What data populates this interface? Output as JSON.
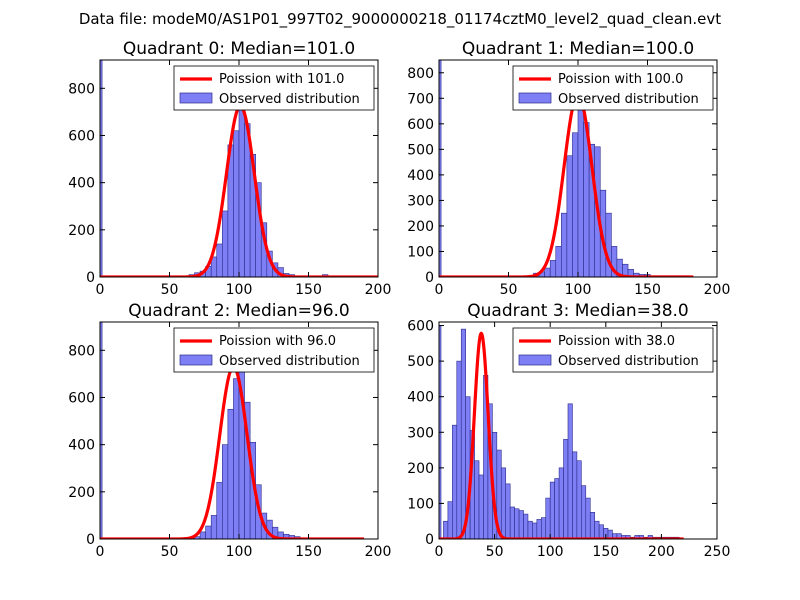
{
  "figure_title": "Data file: modeM0/AS1P01_997T02_9000000218_01174cztM0_level2_quad_clean.evt",
  "colors": {
    "hist_fill": "#7f7ff5",
    "hist_edge": "#2a2a8a",
    "poisson": "#ff0000"
  },
  "chart_data": [
    {
      "type": "bar",
      "title": "Quadrant 0: Median=101.0",
      "xlim": [
        0,
        200
      ],
      "ylim": [
        0,
        920
      ],
      "xticks": [
        0,
        50,
        100,
        150,
        200
      ],
      "yticks": [
        0,
        200,
        400,
        600,
        800
      ],
      "legend": {
        "position": "top-right",
        "entries": [
          "Poission with 101.0",
          "Observed distribution"
        ]
      },
      "spike_at_zero": 920,
      "hist": {
        "bin_width": 4,
        "start": 60,
        "values": [
          5,
          10,
          18,
          25,
          45,
          85,
          140,
          280,
          560,
          620,
          760,
          650,
          520,
          400,
          230,
          110,
          60,
          40,
          15,
          10,
          5,
          5,
          5,
          5,
          5,
          10,
          5,
          5,
          5,
          5,
          5
        ]
      },
      "poisson": {
        "mean": 101.0,
        "peak": 725,
        "sigma": 10.0,
        "x_range": [
          0,
          200
        ]
      }
    },
    {
      "type": "bar",
      "title": "Quadrant 1: Median=100.0",
      "xlim": [
        0,
        200
      ],
      "ylim": [
        0,
        850
      ],
      "xticks": [
        0,
        50,
        100,
        150,
        200
      ],
      "yticks": [
        0,
        100,
        200,
        300,
        400,
        500,
        600,
        700,
        800
      ],
      "legend": {
        "position": "top-right",
        "entries": [
          "Poission with 100.0",
          "Observed distribution"
        ]
      },
      "spike_at_zero": 850,
      "hist": {
        "bin_width": 4,
        "start": 64,
        "values": [
          5,
          15,
          20,
          35,
          65,
          120,
          250,
          475,
          565,
          700,
          605,
          520,
          510,
          340,
          250,
          120,
          70,
          50,
          30,
          15,
          10,
          10,
          5,
          5,
          5,
          5,
          5,
          5,
          5
        ]
      },
      "poisson": {
        "mean": 100.0,
        "peak": 715,
        "sigma": 10.0,
        "x_range": [
          0,
          183
        ]
      }
    },
    {
      "type": "bar",
      "title": "Quadrant 2: Median=96.0",
      "xlim": [
        0,
        200
      ],
      "ylim": [
        0,
        920
      ],
      "xticks": [
        0,
        50,
        100,
        150,
        200
      ],
      "yticks": [
        0,
        200,
        400,
        600,
        800
      ],
      "legend": {
        "position": "top-right",
        "entries": [
          "Poission with 96.0",
          "Observed distribution"
        ]
      },
      "spike_at_zero": 920,
      "hist": {
        "bin_width": 4,
        "start": 64,
        "values": [
          5,
          10,
          30,
          55,
          100,
          240,
          400,
          550,
          680,
          770,
          580,
          410,
          230,
          110,
          80,
          50,
          30,
          20,
          15,
          10,
          5,
          5,
          5,
          5,
          5,
          5,
          5,
          5,
          5,
          5,
          5
        ]
      },
      "poisson": {
        "mean": 96.0,
        "peak": 730,
        "sigma": 9.8,
        "x_range": [
          0,
          190
        ]
      }
    },
    {
      "type": "bar",
      "title": "Quadrant 3: Median=38.0",
      "xlim": [
        0,
        250
      ],
      "ylim": [
        0,
        610
      ],
      "xticks": [
        0,
        50,
        100,
        150,
        200,
        250
      ],
      "yticks": [
        0,
        100,
        200,
        300,
        400,
        500,
        600
      ],
      "legend": {
        "position": "top-right",
        "entries": [
          "Poission with 38.0",
          "Observed distribution"
        ]
      },
      "spike_at_zero": 600,
      "hist": {
        "bin_width": 4,
        "start": 4,
        "values": [
          50,
          105,
          320,
          500,
          590,
          400,
          305,
          220,
          180,
          460,
          380,
          300,
          250,
          200,
          155,
          90,
          85,
          80,
          70,
          50,
          45,
          55,
          60,
          115,
          160,
          170,
          200,
          280,
          380,
          245,
          220,
          150,
          115,
          75,
          50,
          40,
          30,
          25,
          15,
          15,
          10,
          10,
          5,
          10,
          10,
          5,
          10,
          5,
          5,
          5,
          5,
          5,
          5
        ]
      },
      "poisson": {
        "mean": 38.0,
        "peak": 578,
        "sigma": 6.2,
        "x_range": [
          0,
          220
        ]
      }
    }
  ]
}
